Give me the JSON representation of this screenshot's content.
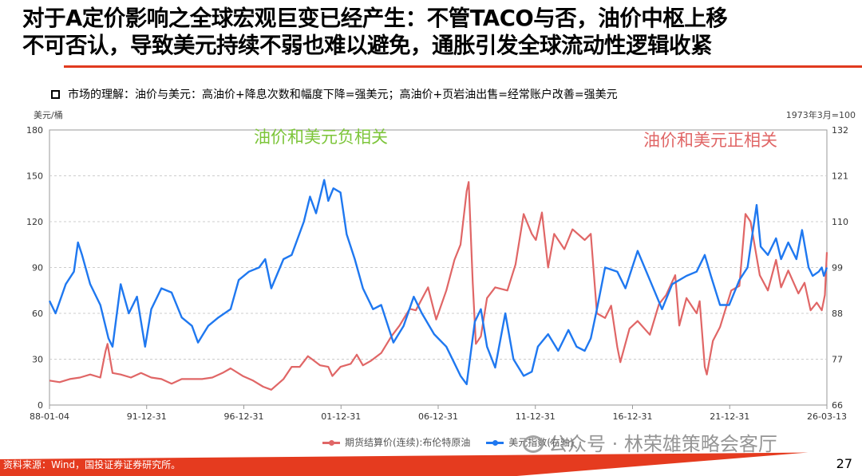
{
  "slide": {
    "title_line1": "对于A定价影响之全球宏观巨变已经产生：不管TACO与否，油价中枢上移",
    "title_line2": "不可否认，导致美元持续不弱也难以避免，通胀引发全球流动性逻辑收紧",
    "subtitle": "市场的理解：油价与美元：高油价+降息次数和幅度下降=强美元；高油价+页岩油出售=经常账户改善=强美元",
    "source": "资料来源：Wind，国投证券证券研究所。",
    "page_number": "27",
    "watermark": "公众号 · 林荣雄策略会客厅"
  },
  "colors": {
    "oil": "#e06666",
    "usd": "#1f78f0",
    "annotation_negative": "#7dc53a",
    "annotation_positive": "#e06666",
    "accent": "#e53b1f"
  },
  "chart_data": {
    "type": "line",
    "left_unit": "美元/桶",
    "right_unit": "1973年3月=100",
    "x_ticks": [
      "88-01-04",
      "91-12-31",
      "96-12-31",
      "01-12-31",
      "06-12-31",
      "11-12-31",
      "16-12-31",
      "21-12-31",
      "26-03-13"
    ],
    "x_range": [
      1988.0,
      2026.2
    ],
    "left_axis": {
      "range": [
        0,
        180
      ],
      "ticks": [
        "0",
        "30",
        "60",
        "90",
        "120",
        "150",
        "180"
      ]
    },
    "right_axis": {
      "range": [
        66,
        132
      ],
      "ticks": [
        "66",
        "77",
        "88",
        "99",
        "110",
        "121",
        "132"
      ]
    },
    "annotations": [
      {
        "text": "油价和美元负相关",
        "color_key": "annotation_negative"
      },
      {
        "text": "油价和美元正相关",
        "color_key": "annotation_positive"
      }
    ],
    "series": [
      {
        "name": "期货结算价(连续):布伦特原油",
        "axis": "left",
        "color_key": "oil",
        "points": [
          [
            1988.0,
            16
          ],
          [
            1988.5,
            15
          ],
          [
            1989.0,
            17
          ],
          [
            1989.5,
            18
          ],
          [
            1990.0,
            20
          ],
          [
            1990.5,
            18
          ],
          [
            1990.75,
            35
          ],
          [
            1990.85,
            40
          ],
          [
            1991.1,
            21
          ],
          [
            1991.5,
            20
          ],
          [
            1992.0,
            18
          ],
          [
            1992.5,
            21
          ],
          [
            1993.0,
            18
          ],
          [
            1993.5,
            17
          ],
          [
            1994.0,
            14
          ],
          [
            1994.5,
            17
          ],
          [
            1995.0,
            17
          ],
          [
            1995.5,
            17
          ],
          [
            1996.0,
            18
          ],
          [
            1996.5,
            21
          ],
          [
            1996.9,
            24
          ],
          [
            1997.5,
            19
          ],
          [
            1998.0,
            16
          ],
          [
            1998.5,
            12
          ],
          [
            1998.9,
            10
          ],
          [
            1999.5,
            17
          ],
          [
            1999.9,
            25
          ],
          [
            2000.3,
            25
          ],
          [
            2000.7,
            32
          ],
          [
            2000.9,
            30
          ],
          [
            2001.3,
            26
          ],
          [
            2001.7,
            25
          ],
          [
            2001.9,
            19
          ],
          [
            2002.3,
            25
          ],
          [
            2002.8,
            27
          ],
          [
            2003.1,
            33
          ],
          [
            2003.4,
            26
          ],
          [
            2003.8,
            29
          ],
          [
            2004.3,
            34
          ],
          [
            2004.8,
            45
          ],
          [
            2005.2,
            52
          ],
          [
            2005.7,
            63
          ],
          [
            2006.0,
            62
          ],
          [
            2006.6,
            77
          ],
          [
            2007.0,
            56
          ],
          [
            2007.5,
            75
          ],
          [
            2007.9,
            95
          ],
          [
            2008.2,
            105
          ],
          [
            2008.5,
            140
          ],
          [
            2008.6,
            146
          ],
          [
            2008.8,
            80
          ],
          [
            2008.95,
            40
          ],
          [
            2009.2,
            45
          ],
          [
            2009.5,
            70
          ],
          [
            2009.9,
            77
          ],
          [
            2010.5,
            75
          ],
          [
            2010.9,
            92
          ],
          [
            2011.3,
            125
          ],
          [
            2011.7,
            112
          ],
          [
            2011.9,
            108
          ],
          [
            2012.2,
            126
          ],
          [
            2012.5,
            90
          ],
          [
            2012.8,
            112
          ],
          [
            2013.3,
            102
          ],
          [
            2013.7,
            115
          ],
          [
            2014.3,
            108
          ],
          [
            2014.6,
            112
          ],
          [
            2014.9,
            60
          ],
          [
            2015.3,
            57
          ],
          [
            2015.6,
            65
          ],
          [
            2015.9,
            38
          ],
          [
            2016.05,
            28
          ],
          [
            2016.5,
            50
          ],
          [
            2016.9,
            55
          ],
          [
            2017.5,
            46
          ],
          [
            2017.95,
            66
          ],
          [
            2018.3,
            72
          ],
          [
            2018.75,
            85
          ],
          [
            2018.95,
            52
          ],
          [
            2019.3,
            70
          ],
          [
            2019.8,
            60
          ],
          [
            2019.95,
            68
          ],
          [
            2020.2,
            25
          ],
          [
            2020.3,
            20
          ],
          [
            2020.6,
            42
          ],
          [
            2020.95,
            51
          ],
          [
            2021.5,
            75
          ],
          [
            2021.9,
            78
          ],
          [
            2022.2,
            125
          ],
          [
            2022.45,
            120
          ],
          [
            2022.9,
            85
          ],
          [
            2023.3,
            75
          ],
          [
            2023.7,
            95
          ],
          [
            2023.95,
            77
          ],
          [
            2024.3,
            88
          ],
          [
            2024.8,
            73
          ],
          [
            2025.1,
            80
          ],
          [
            2025.4,
            62
          ],
          [
            2025.7,
            67
          ],
          [
            2025.95,
            62
          ],
          [
            2026.1,
            72
          ],
          [
            2026.2,
            100
          ]
        ]
      },
      {
        "name": "美元指数(右轴)",
        "axis": "right",
        "color_key": "usd",
        "points": [
          [
            1988.0,
            91
          ],
          [
            1988.3,
            88
          ],
          [
            1988.8,
            95
          ],
          [
            1989.2,
            98
          ],
          [
            1989.4,
            105
          ],
          [
            1989.6,
            102
          ],
          [
            1990.0,
            95
          ],
          [
            1990.5,
            90
          ],
          [
            1990.9,
            82
          ],
          [
            1991.1,
            80
          ],
          [
            1991.5,
            95
          ],
          [
            1991.9,
            88
          ],
          [
            1992.3,
            92
          ],
          [
            1992.7,
            80
          ],
          [
            1993.0,
            89
          ],
          [
            1993.5,
            94
          ],
          [
            1994.0,
            93
          ],
          [
            1994.5,
            87
          ],
          [
            1995.0,
            85
          ],
          [
            1995.3,
            81
          ],
          [
            1995.8,
            85
          ],
          [
            1996.3,
            87
          ],
          [
            1996.9,
            89
          ],
          [
            1997.3,
            96
          ],
          [
            1997.8,
            98
          ],
          [
            1998.3,
            99
          ],
          [
            1998.6,
            101
          ],
          [
            1998.9,
            94
          ],
          [
            1999.5,
            101
          ],
          [
            1999.9,
            102
          ],
          [
            2000.5,
            110
          ],
          [
            2000.8,
            116
          ],
          [
            2001.1,
            112
          ],
          [
            2001.5,
            120
          ],
          [
            2001.7,
            115
          ],
          [
            2001.95,
            118
          ],
          [
            2002.3,
            117
          ],
          [
            2002.6,
            107
          ],
          [
            2003.0,
            101
          ],
          [
            2003.4,
            94
          ],
          [
            2003.9,
            89
          ],
          [
            2004.3,
            90
          ],
          [
            2004.9,
            81
          ],
          [
            2005.4,
            85
          ],
          [
            2005.9,
            92
          ],
          [
            2006.3,
            88
          ],
          [
            2006.9,
            83
          ],
          [
            2007.5,
            80
          ],
          [
            2007.9,
            76
          ],
          [
            2008.2,
            73
          ],
          [
            2008.5,
            71
          ],
          [
            2008.9,
            86
          ],
          [
            2009.2,
            89
          ],
          [
            2009.5,
            80
          ],
          [
            2009.9,
            75
          ],
          [
            2010.4,
            88
          ],
          [
            2010.8,
            77
          ],
          [
            2011.3,
            73
          ],
          [
            2011.7,
            74
          ],
          [
            2012.0,
            80
          ],
          [
            2012.5,
            83
          ],
          [
            2013.0,
            79
          ],
          [
            2013.5,
            84
          ],
          [
            2013.9,
            80
          ],
          [
            2014.3,
            79
          ],
          [
            2014.6,
            82
          ],
          [
            2014.9,
            89
          ],
          [
            2015.3,
            99
          ],
          [
            2015.9,
            98
          ],
          [
            2016.3,
            94
          ],
          [
            2016.9,
            103
          ],
          [
            2017.5,
            96
          ],
          [
            2018.1,
            89
          ],
          [
            2018.6,
            95
          ],
          [
            2019.3,
            97
          ],
          [
            2019.8,
            98
          ],
          [
            2020.2,
            102
          ],
          [
            2020.5,
            97
          ],
          [
            2020.95,
            90
          ],
          [
            2021.4,
            90
          ],
          [
            2021.9,
            96
          ],
          [
            2022.3,
            99
          ],
          [
            2022.75,
            114
          ],
          [
            2022.95,
            104
          ],
          [
            2023.3,
            102
          ],
          [
            2023.7,
            106
          ],
          [
            2023.95,
            101
          ],
          [
            2024.3,
            105
          ],
          [
            2024.7,
            101
          ],
          [
            2024.98,
            108
          ],
          [
            2025.3,
            99
          ],
          [
            2025.5,
            97
          ],
          [
            2025.8,
            98
          ],
          [
            2025.95,
            99
          ],
          [
            2026.05,
            97
          ],
          [
            2026.2,
            99
          ]
        ]
      }
    ],
    "legend": [
      "期货结算价(连续):布伦特原油",
      "美元指数(右轴)"
    ]
  }
}
